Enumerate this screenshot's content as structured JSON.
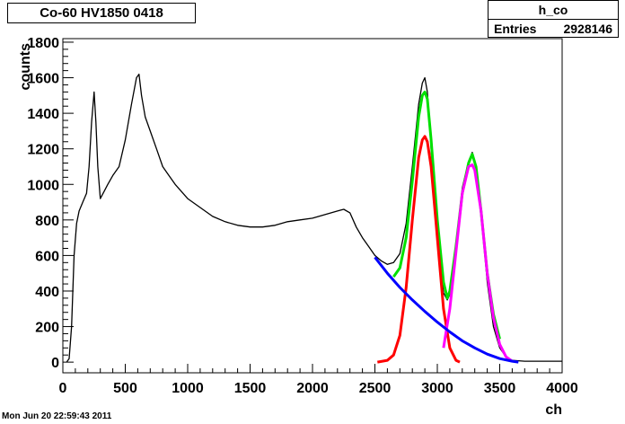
{
  "chart_data": {
    "type": "line",
    "title": "Co-60 HV1850 0418",
    "xlabel": "ch",
    "ylabel": "counts",
    "xlim": [
      0,
      4000
    ],
    "ylim": [
      -60,
      1820
    ],
    "grid": false,
    "x_ticks": [
      0,
      500,
      1000,
      1500,
      2000,
      2500,
      3000,
      3500,
      4000
    ],
    "y_ticks": [
      0,
      200,
      400,
      600,
      800,
      1000,
      1200,
      1400,
      1600,
      1800
    ],
    "stats": {
      "name": "h_co",
      "entries_label": "Entries",
      "entries_value": "2928146"
    },
    "series": [
      {
        "color": "#000000",
        "x": [
          30,
          50,
          70,
          90,
          110,
          130,
          160,
          190,
          210,
          230,
          250,
          265,
          280,
          300,
          330,
          360,
          400,
          450,
          500,
          550,
          590,
          610,
          630,
          660,
          700,
          750,
          800,
          850,
          900,
          1000,
          1100,
          1200,
          1300,
          1400,
          1500,
          1600,
          1700,
          1800,
          1900,
          2000,
          2100,
          2200,
          2250,
          2300,
          2350,
          2400,
          2450,
          2500,
          2550,
          2600,
          2650,
          2700,
          2750,
          2800,
          2850,
          2880,
          2900,
          2920,
          2950,
          3000,
          3050,
          3080,
          3100,
          3150,
          3200,
          3250,
          3280,
          3310,
          3350,
          3400,
          3450,
          3500,
          3550,
          3600,
          3700,
          3800,
          3900,
          4000
        ],
        "y": [
          0,
          20,
          200,
          600,
          780,
          850,
          900,
          950,
          1100,
          1350,
          1520,
          1350,
          1100,
          920,
          960,
          1000,
          1050,
          1100,
          1250,
          1450,
          1600,
          1620,
          1500,
          1380,
          1300,
          1200,
          1100,
          1050,
          1000,
          920,
          870,
          820,
          790,
          770,
          760,
          760,
          770,
          790,
          800,
          810,
          830,
          850,
          860,
          840,
          760,
          700,
          650,
          600,
          570,
          550,
          560,
          610,
          780,
          1100,
          1450,
          1570,
          1600,
          1520,
          1200,
          700,
          390,
          350,
          380,
          650,
          980,
          1130,
          1180,
          1100,
          850,
          450,
          200,
          80,
          30,
          10,
          5,
          5,
          5,
          5
        ]
      },
      {
        "color": "#00e000",
        "x": [
          2650,
          2700,
          2750,
          2800,
          2850,
          2880,
          2900,
          2920,
          2950,
          3000,
          3050,
          3080,
          3100,
          3150,
          3200,
          3250,
          3280,
          3310,
          3350,
          3400,
          3450,
          3500
        ],
        "y": [
          480,
          530,
          700,
          1020,
          1380,
          1500,
          1520,
          1480,
          1250,
          800,
          450,
          360,
          400,
          650,
          950,
          1120,
          1170,
          1100,
          850,
          500,
          270,
          130
        ]
      },
      {
        "color": "#ff0000",
        "x": [
          2520,
          2600,
          2650,
          2700,
          2750,
          2800,
          2850,
          2880,
          2900,
          2920,
          2950,
          3000,
          3050,
          3100,
          3150,
          3180
        ],
        "y": [
          0,
          10,
          40,
          150,
          420,
          800,
          1150,
          1250,
          1270,
          1240,
          1100,
          700,
          300,
          80,
          10,
          0
        ]
      },
      {
        "color": "#ff00ff",
        "x": [
          3050,
          3100,
          3150,
          3200,
          3250,
          3280,
          3300,
          3350,
          3400,
          3450,
          3500,
          3550,
          3600
        ],
        "y": [
          80,
          300,
          620,
          950,
          1100,
          1110,
          1080,
          850,
          500,
          250,
          100,
          30,
          5
        ]
      },
      {
        "color": "#0000ff",
        "x": [
          2500,
          2600,
          2700,
          2800,
          2900,
          3000,
          3100,
          3200,
          3300,
          3400,
          3500,
          3600,
          3650
        ],
        "y": [
          590,
          500,
          420,
          350,
          285,
          225,
          170,
          120,
          80,
          45,
          20,
          5,
          0
        ]
      }
    ]
  },
  "footer": {
    "timestamp": "Mon Jun 20 22:59:43 2011"
  }
}
